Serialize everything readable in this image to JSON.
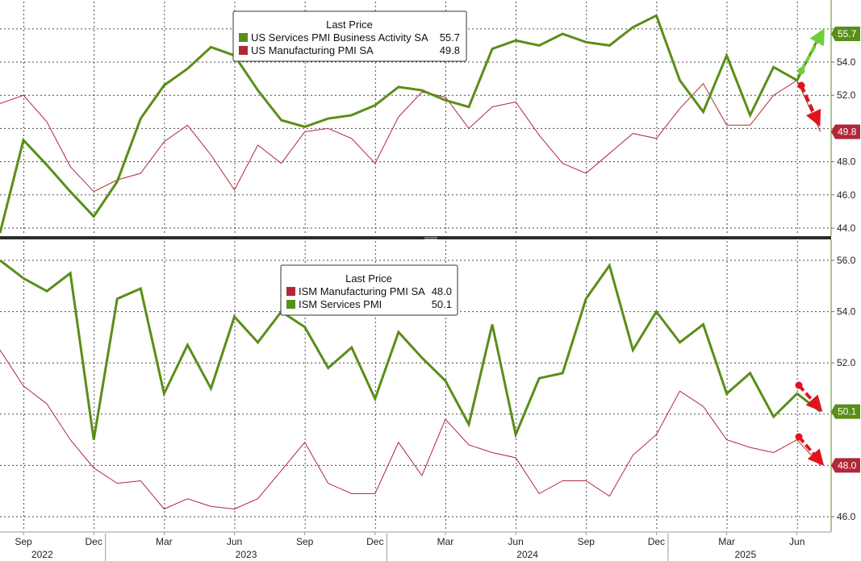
{
  "chart_data": [
    {
      "type": "line",
      "title": "",
      "xlabel": "",
      "ylabel": "",
      "ylim": [
        43.7,
        57.2
      ],
      "yticks": [
        44.0,
        46.0,
        48.0,
        50.0,
        52.0,
        54.0,
        56.0
      ],
      "ytick_labels": [
        "44.0",
        "46.0",
        "48.0",
        "",
        "52.0",
        "54.0",
        ""
      ],
      "grid": true,
      "legend": {
        "title": "Last Price",
        "placement": "top-center",
        "entries": [
          {
            "name": "US Services PMI Business Activity SA",
            "value": "55.7",
            "color": "#5a8e18"
          },
          {
            "name": "US Manufacturing PMI SA",
            "value": "49.8",
            "color": "#b0273a"
          }
        ]
      },
      "x": [
        "2022-08",
        "2022-09",
        "2022-10",
        "2022-11",
        "2022-12",
        "2023-01",
        "2023-02",
        "2023-03",
        "2023-04",
        "2023-05",
        "2023-06",
        "2023-07",
        "2023-08",
        "2023-09",
        "2023-10",
        "2023-11",
        "2023-12",
        "2024-01",
        "2024-02",
        "2024-03",
        "2024-04",
        "2024-05",
        "2024-06",
        "2024-07",
        "2024-08",
        "2024-09",
        "2024-10",
        "2024-11",
        "2024-12",
        "2025-01",
        "2025-02",
        "2025-03",
        "2025-04",
        "2025-05",
        "2025-06",
        "2025-07"
      ],
      "series": [
        {
          "name": "US Services PMI Business Activity SA",
          "color": "#5a8e18",
          "values": [
            43.7,
            49.3,
            47.8,
            46.2,
            44.7,
            46.8,
            50.6,
            52.6,
            53.6,
            54.9,
            54.4,
            52.3,
            50.5,
            50.1,
            50.6,
            50.8,
            51.4,
            52.5,
            52.3,
            51.7,
            51.3,
            54.8,
            55.3,
            55.0,
            55.7,
            55.2,
            55.0,
            56.1,
            56.8,
            52.9,
            51.0,
            54.4,
            50.8,
            53.7,
            52.9,
            55.7
          ],
          "last_label": "55.7"
        },
        {
          "name": "US Manufacturing PMI SA",
          "color": "#b0273a",
          "values": [
            51.5,
            52.0,
            50.4,
            47.7,
            46.2,
            46.9,
            47.3,
            49.2,
            50.2,
            48.4,
            46.3,
            49.0,
            47.9,
            49.8,
            50.0,
            49.4,
            47.9,
            50.7,
            52.2,
            51.9,
            50.0,
            51.3,
            51.6,
            49.6,
            47.9,
            47.3,
            48.5,
            49.7,
            49.4,
            51.2,
            52.7,
            50.2,
            50.2,
            52.0,
            52.9,
            49.8
          ],
          "last_label": "49.8"
        }
      ]
    },
    {
      "type": "line",
      "title": "",
      "xlabel": "",
      "ylabel": "",
      "ylim": [
        45.6,
        56.4
      ],
      "yticks": [
        46.0,
        48.0,
        50.0,
        52.0,
        54.0,
        56.0
      ],
      "ytick_labels": [
        "46.0",
        "",
        "",
        "52.0",
        "54.0",
        "56.0"
      ],
      "grid": true,
      "legend": {
        "title": "Last Price",
        "placement": "top-center",
        "entries": [
          {
            "name": "ISM Manufacturing PMI SA",
            "value": "48.0",
            "color": "#b0273a"
          },
          {
            "name": "ISM Services PMI",
            "value": "50.1",
            "color": "#5a8e18"
          }
        ]
      },
      "x": [
        "2022-08",
        "2022-09",
        "2022-10",
        "2022-11",
        "2022-12",
        "2023-01",
        "2023-02",
        "2023-03",
        "2023-04",
        "2023-05",
        "2023-06",
        "2023-07",
        "2023-08",
        "2023-09",
        "2023-10",
        "2023-11",
        "2023-12",
        "2024-01",
        "2024-02",
        "2024-03",
        "2024-04",
        "2024-05",
        "2024-06",
        "2024-07",
        "2024-08",
        "2024-09",
        "2024-10",
        "2024-11",
        "2024-12",
        "2025-01",
        "2025-02",
        "2025-03",
        "2025-04",
        "2025-05",
        "2025-06",
        "2025-07"
      ],
      "series": [
        {
          "name": "ISM Services PMI",
          "color": "#5a8e18",
          "values": [
            56.0,
            55.3,
            54.8,
            55.5,
            49.0,
            54.5,
            54.9,
            50.8,
            52.7,
            51.0,
            53.8,
            52.8,
            54.0,
            53.4,
            51.8,
            52.6,
            50.6,
            53.2,
            52.2,
            51.3,
            49.6,
            53.5,
            49.2,
            51.4,
            51.6,
            54.5,
            55.8,
            52.5,
            54.0,
            52.8,
            53.5,
            50.8,
            51.6,
            49.9,
            50.8,
            50.1
          ],
          "last_label": "50.1"
        },
        {
          "name": "ISM Manufacturing PMI SA",
          "color": "#b0273a",
          "values": [
            52.5,
            51.1,
            50.4,
            49.0,
            47.9,
            47.3,
            47.4,
            46.3,
            46.7,
            46.4,
            46.3,
            46.7,
            47.8,
            48.9,
            47.3,
            46.9,
            46.9,
            48.9,
            47.6,
            49.8,
            48.8,
            48.5,
            48.3,
            46.9,
            47.4,
            47.4,
            46.8,
            48.4,
            49.2,
            50.9,
            50.3,
            49.0,
            48.7,
            48.5,
            49.0,
            48.0
          ],
          "last_label": "48.0"
        }
      ]
    }
  ],
  "x_axis": {
    "month_labels": [
      "Sep",
      "Dec",
      "Mar",
      "Jun",
      "Sep",
      "Dec",
      "Mar",
      "Jun",
      "Sep",
      "Dec",
      "Mar",
      "Jun"
    ],
    "year_labels": [
      "2022",
      "2023",
      "2024",
      "2025"
    ]
  },
  "colors": {
    "green": "#5a8e18",
    "red": "#b0273a",
    "arrow_green": "#6fcf3b",
    "arrow_red": "#e0141e"
  }
}
